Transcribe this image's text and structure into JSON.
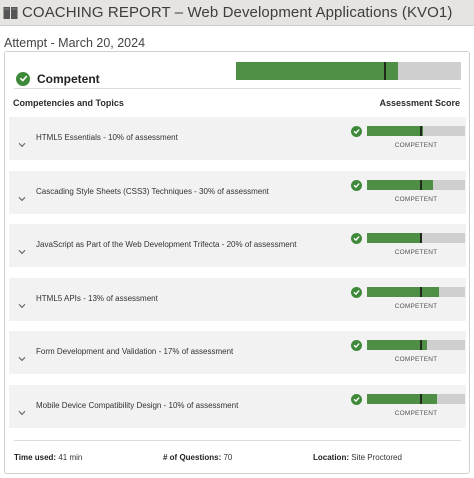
{
  "header": {
    "title": "COACHING REPORT – Web Development Applications (KVO1)"
  },
  "attempt": "Attempt - March 20, 2024",
  "overall": {
    "label": "Competent",
    "score_fraction": 0.72,
    "threshold_fraction": 0.66
  },
  "table_headers": {
    "topics": "Competencies and Topics",
    "score": "Assessment Score"
  },
  "competencies": [
    {
      "label": "HTML5 Essentials - 10% of assessment",
      "status": "COMPETENT",
      "score_fraction": 0.57,
      "threshold_fraction": 0.55
    },
    {
      "label": "Cascading Style Sheets (CSS3) Techniques - 30% of assessment",
      "status": "COMPETENT",
      "score_fraction": 0.67,
      "threshold_fraction": 0.55
    },
    {
      "label": "JavaScript as Part of the Web Development Trifecta - 20% of assessment",
      "status": "COMPETENT",
      "score_fraction": 0.56,
      "threshold_fraction": 0.55
    },
    {
      "label": "HTML5 APIs - 13% of assessment",
      "status": "COMPETENT",
      "score_fraction": 0.73,
      "threshold_fraction": 0.55
    },
    {
      "label": "Form Development and Validation - 17% of assessment",
      "status": "COMPETENT",
      "score_fraction": 0.61,
      "threshold_fraction": 0.55
    },
    {
      "label": "Mobile Device Compatibility Design - 10% of assessment",
      "status": "COMPETENT",
      "score_fraction": 0.71,
      "threshold_fraction": 0.55
    }
  ],
  "footer": {
    "time_label": "Time used:",
    "time_value": "41 min",
    "questions_label": "# of Questions:",
    "questions_value": "70",
    "location_label": "Location:",
    "location_value": "Site Proctored"
  },
  "colors": {
    "success_green": "#3f8a3a",
    "bar_fill": "#4f8f45",
    "bar_track": "#cfcfcf",
    "marker": "#1f2a1c",
    "row_background": "#f2f2f2",
    "title_bar": "#e6e4e1"
  },
  "icons": {
    "title": "book-icon",
    "status": "check-circle-icon",
    "expand": "chevron-down-icon"
  }
}
